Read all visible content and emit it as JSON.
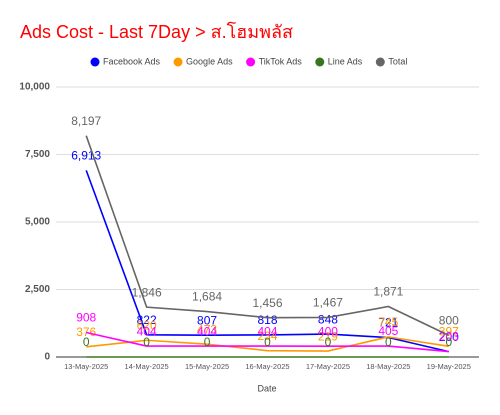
{
  "chart_data": {
    "type": "line",
    "title": "Ads Cost - Last 7Day > ส.โฮมพลัส",
    "x_label": "Date",
    "categories": [
      "13-May-2025",
      "14-May-2025",
      "15-May-2025",
      "16-May-2025",
      "17-May-2025",
      "18-May-2025",
      "19-May-2025"
    ],
    "series": [
      {
        "name": "Facebook Ads",
        "color": "#0000ff",
        "values": [
          6913,
          822,
          807,
          818,
          848,
          721,
          200
        ],
        "value_labels": [
          "6,913",
          "822",
          "807",
          "818",
          "848",
          "721",
          "200"
        ]
      },
      {
        "name": "Google Ads",
        "color": "#ff9900",
        "values": [
          376,
          620,
          473,
          234,
          219,
          745,
          397
        ]
      },
      {
        "name": "TikTok Ads",
        "color": "#ff00ff",
        "values": [
          908,
          404,
          404,
          404,
          400,
          405,
          203
        ]
      },
      {
        "name": "Line Ads",
        "color": "#38761d",
        "values": [
          0,
          0,
          0,
          0,
          0,
          0,
          0
        ]
      },
      {
        "name": "Total",
        "color": "#666666",
        "values": [
          8197,
          1846,
          1684,
          1456,
          1467,
          1871,
          800
        ],
        "value_labels": [
          "8,197",
          "1,846",
          "1,684",
          "1,456",
          "1,467",
          "1,871",
          "800"
        ]
      }
    ],
    "ylim": [
      0,
      10000
    ],
    "yticks": [
      0,
      {
        "value": 2500,
        "label": "2,500"
      },
      {
        "value": 5000,
        "label": "5,000"
      },
      {
        "value": 7500,
        "label": "7,500"
      },
      {
        "value": 10000,
        "label": "10,000"
      }
    ],
    "grid": true,
    "legend": "top"
  }
}
